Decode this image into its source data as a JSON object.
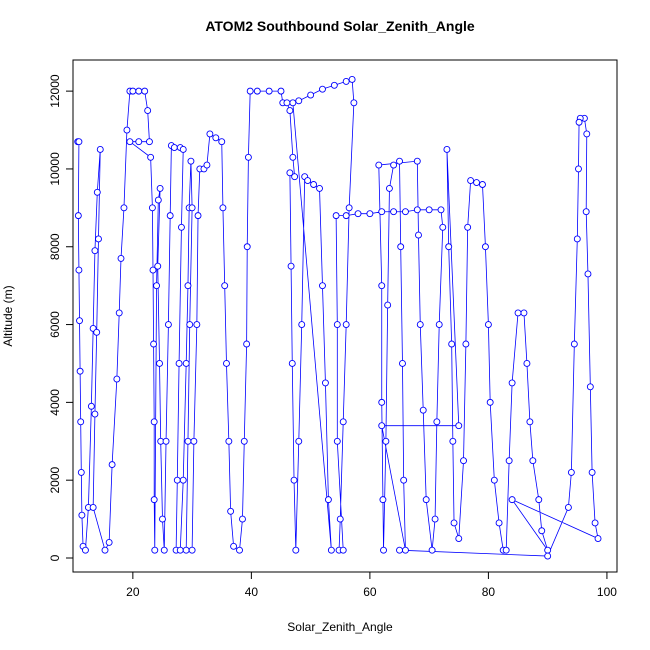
{
  "chart_data": {
    "type": "line",
    "title": "ATOM2 Southbound Solar_Zenith_Angle",
    "x_label": "Solar_Zenith_Angle",
    "y_label": "Altitude (m)",
    "xlim": [
      9.9,
      101.7
    ],
    "ylim": [
      -360,
      12800
    ],
    "xticks": [
      20,
      40,
      60,
      80,
      100
    ],
    "yticks": [
      0,
      2000,
      4000,
      6000,
      8000,
      10000,
      12000
    ],
    "grid": false,
    "series": [
      {
        "color": "#0000ff",
        "x": [
          10.7,
          10.9,
          10.8,
          10.9,
          11,
          11.1,
          11.2,
          11.3,
          11.4,
          11.6,
          12,
          12.5,
          13,
          13.3,
          13.6,
          14,
          14.5,
          14.2,
          13.9,
          13.6,
          13.3,
          15.3,
          16,
          16.5,
          17.3,
          17.7,
          18,
          18.5,
          19,
          19.5,
          20,
          21,
          22,
          22.5,
          22.8,
          21,
          19.5,
          23,
          23.3,
          23.4,
          23.5,
          23.6,
          23.6,
          23.7,
          24,
          24.3,
          24.6,
          24.2,
          24.5,
          24.7,
          25,
          25.3,
          25.6,
          26,
          26.3,
          26.5,
          27,
          28,
          28.5,
          28.2,
          27.8,
          27.5,
          27.3,
          28,
          28.5,
          29,
          29.3,
          29.5,
          29.8,
          30,
          29.6,
          29.3,
          29,
          30,
          30.3,
          30.8,
          31,
          31.3,
          32,
          32.5,
          33,
          34,
          35,
          35.2,
          35.5,
          35.8,
          36.2,
          36.5,
          37,
          38,
          38.5,
          38.8,
          39.2,
          39.3,
          39.5,
          39.8,
          41,
          43,
          45,
          45.3,
          46,
          46.5,
          47,
          47.3,
          46.5,
          46.7,
          46.9,
          47.2,
          47.5,
          48,
          48.5,
          49,
          49.5,
          50.5,
          51.5,
          52,
          52.5,
          53,
          53.5,
          47,
          48,
          50,
          52,
          54,
          56,
          57,
          57.3,
          56.5,
          56,
          55.5,
          55,
          54.8,
          55.5,
          54.5,
          54.5,
          54.3,
          56,
          58,
          60,
          62,
          64,
          66,
          68,
          70,
          72,
          72.3,
          71.7,
          71.3,
          71,
          70.5,
          69.5,
          69,
          68.5,
          68.2,
          68,
          61.5,
          62,
          62,
          62.2,
          62.3,
          62.7,
          63,
          63.3,
          64,
          65,
          65.2,
          65.5,
          65.7,
          66,
          62,
          75,
          73,
          73.3,
          73.8,
          74,
          74.2,
          75,
          75.8,
          76.2,
          76.5,
          77,
          78,
          79,
          79.5,
          80,
          80.3,
          81,
          81.8,
          82.5,
          83,
          83.5,
          84,
          85,
          86,
          86.5,
          87,
          87.5,
          88.5,
          89,
          90,
          84,
          98.5,
          98,
          97.5,
          97.2,
          96.8,
          96.5,
          96.6,
          96.2,
          95.5,
          95.3,
          95.2,
          95,
          94.5,
          94,
          93.5,
          90,
          65
        ],
        "values": [
          10700,
          10700,
          8800,
          7400,
          6100,
          4800,
          3500,
          2200,
          1100,
          300,
          200,
          1300,
          3900,
          5900,
          7900,
          9400,
          10500,
          8200,
          5800,
          3700,
          1300,
          200,
          400,
          2400,
          4600,
          6300,
          7700,
          9000,
          11000,
          12000,
          12000,
          12000,
          12000,
          11500,
          10700,
          10700,
          10700,
          10300,
          9000,
          7400,
          5500,
          3500,
          1500,
          200,
          7000,
          9200,
          9500,
          7500,
          5000,
          3000,
          1000,
          200,
          3000,
          6000,
          8800,
          10600,
          10550,
          10550,
          10500,
          8500,
          5000,
          2000,
          200,
          200,
          2000,
          5000,
          7000,
          9000,
          10200,
          9000,
          6000,
          3000,
          200,
          200,
          3000,
          6000,
          8800,
          10000,
          10000,
          10100,
          10900,
          10800,
          10700,
          9000,
          7000,
          5000,
          3000,
          1200,
          300,
          200,
          1000,
          3000,
          5500,
          8000,
          10300,
          12000,
          12000,
          12000,
          12000,
          11700,
          11700,
          11500,
          10300,
          9800,
          9900,
          7500,
          5000,
          2000,
          200,
          3000,
          6000,
          9800,
          9700,
          9600,
          9500,
          7000,
          4500,
          1500,
          200,
          11700,
          11750,
          11900,
          12050,
          12150,
          12250,
          12300,
          11700,
          9000,
          6000,
          3500,
          1000,
          200,
          200,
          3000,
          6000,
          8800,
          8800,
          8850,
          8850,
          8900,
          8900,
          8900,
          8950,
          8950,
          8950,
          8500,
          6000,
          3500,
          1000,
          200,
          1500,
          3800,
          6000,
          8300,
          10200,
          10100,
          7000,
          4000,
          1500,
          200,
          3000,
          6500,
          9500,
          10100,
          10200,
          8000,
          5000,
          2000,
          200,
          3400,
          3400,
          10500,
          8000,
          5500,
          3000,
          900,
          500,
          2500,
          5500,
          8500,
          9700,
          9650,
          9600,
          8000,
          6000,
          4000,
          2000,
          900,
          200,
          200,
          2500,
          4500,
          6300,
          6300,
          5000,
          3500,
          2500,
          1500,
          700,
          200,
          1500,
          500,
          900,
          2200,
          4400,
          7300,
          8900,
          10900,
          11300,
          11300,
          11200,
          10000,
          8200,
          5500,
          2200,
          1300,
          50,
          200
        ]
      }
    ]
  }
}
